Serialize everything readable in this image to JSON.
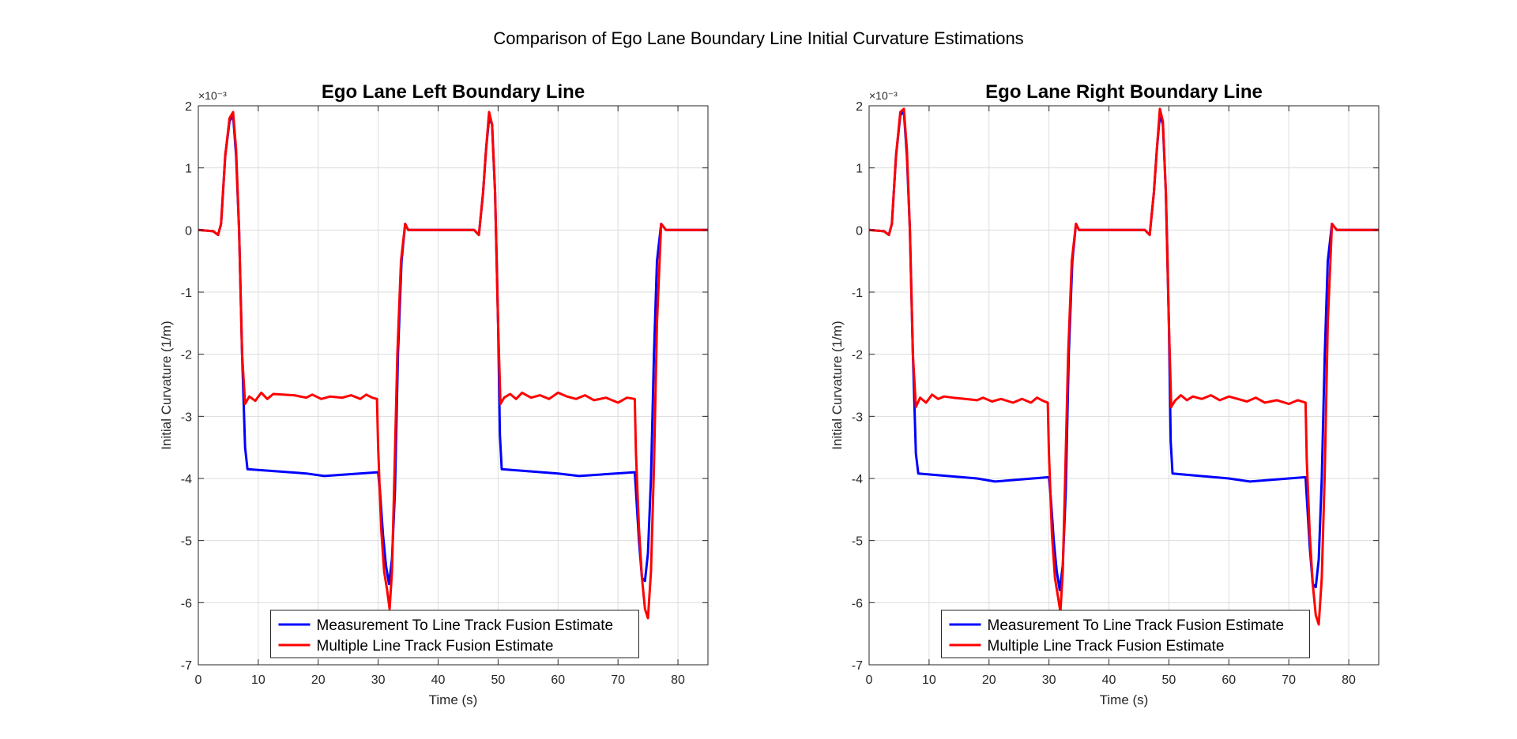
{
  "figure_title": "Comparison of Ego Lane Boundary Line Initial Curvature Estimations",
  "colors": {
    "series1": "#0000ff",
    "series2": "#ff0000",
    "grid": "#dcdcdc",
    "axis": "#262626"
  },
  "chart_data": [
    {
      "type": "line",
      "title": "Ego Lane Left Boundary Line",
      "xlabel": "Time (s)",
      "ylabel": "Initial Curvature (1/m)",
      "y_multiplier": "×10⁻³",
      "xlim": [
        0,
        85
      ],
      "ylim": [
        -7,
        2
      ],
      "xticks": [
        0,
        10,
        20,
        30,
        40,
        50,
        60,
        70,
        80
      ],
      "yticks": [
        -7,
        -6,
        -5,
        -4,
        -3,
        -2,
        -1,
        0,
        1,
        2
      ],
      "grid": true,
      "legend_position": "bottom-center",
      "series": [
        {
          "name": "Measurement To Line Track Fusion Estimate",
          "color": "#0000ff",
          "x": [
            0,
            2.5,
            3.3,
            3.8,
            4.5,
            5.2,
            5.8,
            6.3,
            6.8,
            7.3,
            7.8,
            8.2,
            18,
            21,
            30,
            30.3,
            30.8,
            31.3,
            31.8,
            32.3,
            32.8,
            33.3,
            33.9,
            34.5,
            35,
            46,
            46.8,
            47.5,
            48,
            48.5,
            49,
            49.5,
            50,
            50.3,
            50.6,
            60,
            63.5,
            72.8,
            73,
            73.5,
            74,
            74.5,
            75,
            75.5,
            76,
            76.5,
            77.2,
            78,
            85
          ],
          "y": [
            0,
            -0.02,
            -0.08,
            0.1,
            1.2,
            1.75,
            1.85,
            1.2,
            0,
            -2,
            -3.5,
            -3.85,
            -3.92,
            -3.96,
            -3.9,
            -4.2,
            -4.9,
            -5.4,
            -5.7,
            -5.3,
            -4.2,
            -2,
            -0.5,
            0.1,
            0,
            0,
            -0.08,
            0.6,
            1.3,
            1.8,
            1.7,
            0.6,
            -1.5,
            -3.3,
            -3.85,
            -3.92,
            -3.96,
            -3.9,
            -4.2,
            -5,
            -5.6,
            -5.65,
            -5.2,
            -4,
            -2,
            -0.5,
            0.1,
            0,
            0
          ]
        },
        {
          "name": "Multiple Line Track Fusion Estimate",
          "color": "#ff0000",
          "x": [
            0,
            2.5,
            3.3,
            3.8,
            4.5,
            5.2,
            5.8,
            6.3,
            6.8,
            7.3,
            7.8,
            8.5,
            9.5,
            10.5,
            11.5,
            12.5,
            14,
            16,
            18,
            19,
            20.5,
            22,
            24,
            25.5,
            27,
            28,
            29,
            29.8,
            30,
            30.5,
            31,
            31.5,
            31.9,
            32.3,
            32.7,
            33.2,
            33.8,
            34.5,
            35,
            46,
            46.8,
            47.5,
            48,
            48.5,
            49,
            49.5,
            50,
            50.4,
            51,
            52,
            53,
            54,
            55.5,
            57,
            58.5,
            60,
            61.5,
            63,
            64.5,
            66,
            68,
            70,
            71.5,
            72.8,
            73,
            73.5,
            74,
            74.5,
            75,
            75.5,
            76,
            76.5,
            77.2,
            78,
            85
          ],
          "y": [
            0,
            -0.02,
            -0.08,
            0.1,
            1.2,
            1.8,
            1.9,
            1.3,
            0,
            -2,
            -2.8,
            -2.68,
            -2.75,
            -2.62,
            -2.72,
            -2.64,
            -2.65,
            -2.66,
            -2.7,
            -2.65,
            -2.72,
            -2.68,
            -2.7,
            -2.66,
            -2.72,
            -2.65,
            -2.7,
            -2.72,
            -3.5,
            -4.8,
            -5.5,
            -5.8,
            -6.1,
            -5.5,
            -4,
            -2,
            -0.5,
            0.1,
            0,
            0,
            -0.08,
            0.6,
            1.3,
            1.9,
            1.7,
            0.6,
            -1.5,
            -2.8,
            -2.7,
            -2.64,
            -2.72,
            -2.62,
            -2.7,
            -2.66,
            -2.72,
            -2.62,
            -2.68,
            -2.72,
            -2.66,
            -2.74,
            -2.7,
            -2.78,
            -2.7,
            -2.72,
            -3.6,
            -4.8,
            -5.6,
            -6.1,
            -6.25,
            -5.5,
            -3.8,
            -1.5,
            0.1,
            0,
            0
          ]
        }
      ]
    },
    {
      "type": "line",
      "title": "Ego Lane Right Boundary Line",
      "xlabel": "Time (s)",
      "ylabel": "Initial Curvature (1/m)",
      "y_multiplier": "×10⁻³",
      "xlim": [
        0,
        85
      ],
      "ylim": [
        -7,
        2
      ],
      "xticks": [
        0,
        10,
        20,
        30,
        40,
        50,
        60,
        70,
        80
      ],
      "yticks": [
        -7,
        -6,
        -5,
        -4,
        -3,
        -2,
        -1,
        0,
        1,
        2
      ],
      "grid": true,
      "legend_position": "bottom-center",
      "series": [
        {
          "name": "Measurement To Line Track Fusion Estimate",
          "color": "#0000ff",
          "x": [
            0,
            2.5,
            3.3,
            3.8,
            4.5,
            5.2,
            5.8,
            6.3,
            6.8,
            7.3,
            7.8,
            8.2,
            18,
            21,
            30,
            30.3,
            30.8,
            31.3,
            31.8,
            32.3,
            32.8,
            33.3,
            33.9,
            34.5,
            35,
            46,
            46.8,
            47.5,
            48,
            48.5,
            49,
            49.5,
            50,
            50.3,
            50.6,
            60,
            63.5,
            72.8,
            73,
            73.5,
            74,
            74.5,
            75,
            75.5,
            76,
            76.5,
            77.2,
            78,
            85
          ],
          "y": [
            0,
            -0.02,
            -0.08,
            0.1,
            1.2,
            1.85,
            1.9,
            1.2,
            0,
            -2,
            -3.6,
            -3.92,
            -4.0,
            -4.05,
            -3.98,
            -4.3,
            -5.0,
            -5.5,
            -5.8,
            -5.4,
            -4.2,
            -2,
            -0.5,
            0.1,
            0,
            0,
            -0.08,
            0.6,
            1.3,
            1.85,
            1.7,
            0.6,
            -1.5,
            -3.4,
            -3.92,
            -4.0,
            -4.05,
            -3.98,
            -4.3,
            -5.1,
            -5.7,
            -5.75,
            -5.3,
            -4,
            -2,
            -0.5,
            0.1,
            0,
            0
          ]
        },
        {
          "name": "Multiple Line Track Fusion Estimate",
          "color": "#ff0000",
          "x": [
            0,
            2.5,
            3.3,
            3.8,
            4.5,
            5.2,
            5.8,
            6.3,
            6.8,
            7.3,
            7.8,
            8.5,
            9.5,
            10.5,
            11.5,
            12.5,
            14,
            16,
            18,
            19,
            20.5,
            22,
            24,
            25.5,
            27,
            28,
            29,
            29.8,
            30,
            30.5,
            31,
            31.5,
            31.9,
            32.3,
            32.7,
            33.2,
            33.8,
            34.5,
            35,
            46,
            46.8,
            47.5,
            48,
            48.5,
            49,
            49.5,
            50,
            50.4,
            51,
            52,
            53,
            54,
            55.5,
            57,
            58.5,
            60,
            61.5,
            63,
            64.5,
            66,
            68,
            70,
            71.5,
            72.8,
            73,
            73.5,
            74,
            74.5,
            75,
            75.5,
            76,
            76.5,
            77.2,
            78,
            85
          ],
          "y": [
            0,
            -0.02,
            -0.08,
            0.1,
            1.2,
            1.9,
            1.95,
            1.3,
            0,
            -2,
            -2.85,
            -2.7,
            -2.78,
            -2.65,
            -2.72,
            -2.68,
            -2.7,
            -2.72,
            -2.74,
            -2.7,
            -2.76,
            -2.72,
            -2.78,
            -2.72,
            -2.78,
            -2.7,
            -2.75,
            -2.78,
            -3.6,
            -4.9,
            -5.6,
            -5.9,
            -6.15,
            -5.5,
            -4,
            -2,
            -0.5,
            0.1,
            0,
            0,
            -0.08,
            0.6,
            1.3,
            1.95,
            1.75,
            0.6,
            -1.5,
            -2.85,
            -2.75,
            -2.66,
            -2.74,
            -2.68,
            -2.72,
            -2.66,
            -2.74,
            -2.68,
            -2.72,
            -2.76,
            -2.7,
            -2.78,
            -2.74,
            -2.8,
            -2.74,
            -2.78,
            -3.7,
            -4.9,
            -5.7,
            -6.2,
            -6.35,
            -5.6,
            -3.9,
            -1.5,
            0.1,
            0,
            0
          ]
        }
      ]
    }
  ]
}
